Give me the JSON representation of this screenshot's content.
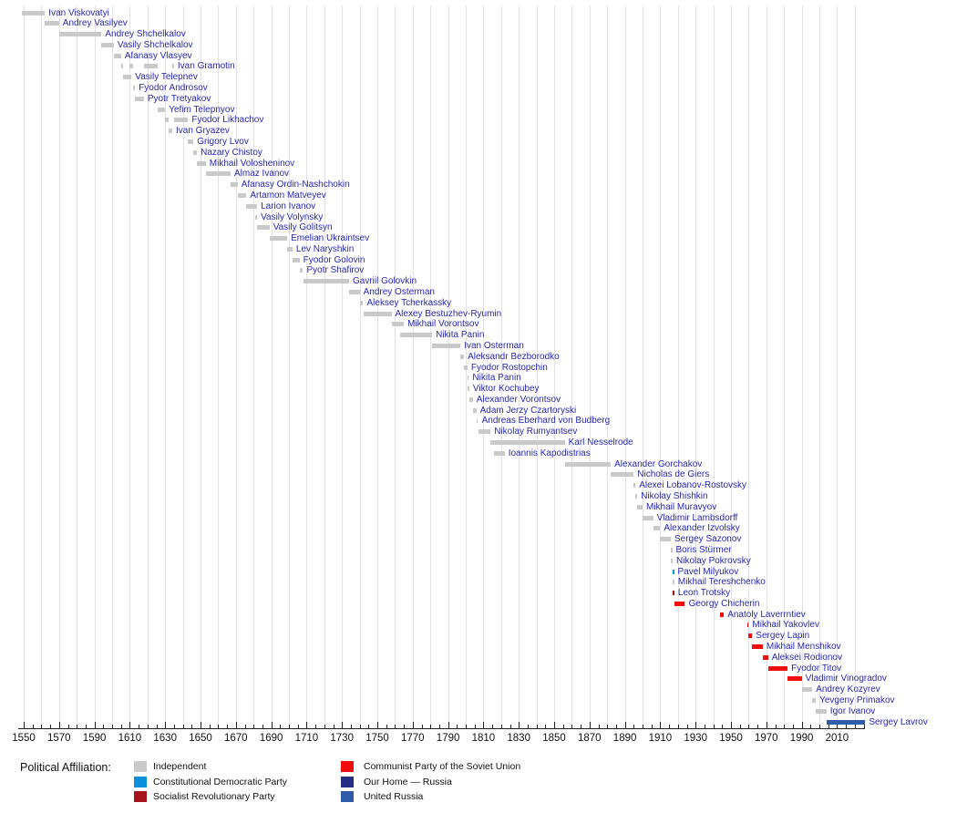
{
  "chart_data": {
    "type": "timeline-gantt",
    "description": "Timeline of Russian foreign ministers / heads of the foreign affairs office, bars show term of office",
    "x_axis": {
      "min_year": 1547,
      "max_year": 2026,
      "tick_label_years": [
        1550,
        1570,
        1590,
        1610,
        1630,
        1650,
        1670,
        1690,
        1710,
        1730,
        1750,
        1770,
        1790,
        1810,
        1830,
        1850,
        1870,
        1890,
        1910,
        1930,
        1950,
        1970,
        1990,
        2010
      ],
      "minor_tick_step": 5,
      "gridline_step": 10
    },
    "affiliation_colors": {
      "independent": "#c9c9c9",
      "kadet": "#0c90dd",
      "sr": "#a8141c",
      "cpsu": "#f20d0d",
      "our_home": "#262d84",
      "united_russia": "#2e5ca9"
    },
    "label_color": "#2727b5",
    "gridline_color": "#e2e2e2",
    "ministers": [
      {
        "name": "Ivan Viskovatyi",
        "affiliation": "independent",
        "terms": [
          [
            1549,
            1562
          ]
        ]
      },
      {
        "name": "Andrey Vasilyev",
        "affiliation": "independent",
        "terms": [
          [
            1562,
            1570
          ]
        ]
      },
      {
        "name": "Andrey Shchelkalov",
        "affiliation": "independent",
        "terms": [
          [
            1570,
            1594
          ]
        ]
      },
      {
        "name": "Vasily Shchelkalov",
        "affiliation": "independent",
        "terms": [
          [
            1594,
            1601
          ]
        ]
      },
      {
        "name": "Afanasy Vlasyev",
        "affiliation": "independent",
        "terms": [
          [
            1601,
            1605
          ]
        ]
      },
      {
        "name": "Ivan Gramotin",
        "affiliation": "independent",
        "terms": [
          [
            1605,
            1606
          ],
          [
            1610,
            1612
          ],
          [
            1618,
            1626
          ],
          [
            1634,
            1635
          ]
        ]
      },
      {
        "name": "Vasily Telepnev",
        "affiliation": "independent",
        "terms": [
          [
            1606,
            1611
          ]
        ]
      },
      {
        "name": "Fyodor Androsov",
        "affiliation": "independent",
        "terms": [
          [
            1612,
            1613
          ]
        ]
      },
      {
        "name": "Pyotr Tretyakov",
        "affiliation": "independent",
        "terms": [
          [
            1613,
            1618
          ]
        ]
      },
      {
        "name": "Yefim Telepnyov",
        "affiliation": "independent",
        "terms": [
          [
            1626,
            1630
          ]
        ]
      },
      {
        "name": "Fyodor Likhachov",
        "affiliation": "independent",
        "terms": [
          [
            1630,
            1632
          ],
          [
            1635,
            1643
          ]
        ]
      },
      {
        "name": "Ivan Gryazev",
        "affiliation": "independent",
        "terms": [
          [
            1632,
            1634
          ]
        ]
      },
      {
        "name": "Grigory Lvov",
        "affiliation": "independent",
        "terms": [
          [
            1643,
            1646
          ]
        ]
      },
      {
        "name": "Nazary Chistoy",
        "affiliation": "independent",
        "terms": [
          [
            1646,
            1648
          ]
        ]
      },
      {
        "name": "Mikhail Volosheninov",
        "affiliation": "independent",
        "terms": [
          [
            1648,
            1653
          ]
        ]
      },
      {
        "name": "Almaz Ivanov",
        "affiliation": "independent",
        "terms": [
          [
            1653,
            1667
          ]
        ]
      },
      {
        "name": "Afanasy Ordin-Nashchokin",
        "affiliation": "independent",
        "terms": [
          [
            1667,
            1671
          ]
        ]
      },
      {
        "name": "Artamon Matveyev",
        "affiliation": "independent",
        "terms": [
          [
            1671,
            1676
          ]
        ]
      },
      {
        "name": "Larion Ivanov",
        "affiliation": "independent",
        "terms": [
          [
            1676,
            1682
          ]
        ]
      },
      {
        "name": "Vasily Volynsky",
        "affiliation": "independent",
        "terms": [
          [
            1681,
            1682
          ]
        ]
      },
      {
        "name": "Vasily Golitsyn",
        "affiliation": "independent",
        "terms": [
          [
            1682,
            1689
          ]
        ]
      },
      {
        "name": "Emelian Ukraintsev",
        "affiliation": "independent",
        "terms": [
          [
            1689,
            1699
          ]
        ]
      },
      {
        "name": "Lev Naryshkin",
        "affiliation": "independent",
        "terms": [
          [
            1699,
            1702
          ]
        ]
      },
      {
        "name": "Fyodor Golovin",
        "affiliation": "independent",
        "terms": [
          [
            1702,
            1706
          ]
        ]
      },
      {
        "name": "Pyotr Shafirov",
        "affiliation": "independent",
        "terms": [
          [
            1706,
            1708
          ]
        ]
      },
      {
        "name": "Gavriil Golovkin",
        "affiliation": "independent",
        "terms": [
          [
            1708,
            1734
          ]
        ]
      },
      {
        "name": "Andrey Osterman",
        "affiliation": "independent",
        "terms": [
          [
            1734,
            1740
          ]
        ]
      },
      {
        "name": "Aleksey Tcherkassky",
        "affiliation": "independent",
        "terms": [
          [
            1740,
            1742
          ]
        ]
      },
      {
        "name": "Alexey Bestuzhev-Ryumin",
        "affiliation": "independent",
        "terms": [
          [
            1742,
            1758
          ]
        ]
      },
      {
        "name": "Mikhail Vorontsov",
        "affiliation": "independent",
        "terms": [
          [
            1758,
            1765
          ]
        ]
      },
      {
        "name": "Nikita Panin",
        "affiliation": "independent",
        "terms": [
          [
            1763,
            1781
          ]
        ]
      },
      {
        "name": "Ivan Osterman",
        "affiliation": "independent",
        "terms": [
          [
            1781,
            1797
          ]
        ]
      },
      {
        "name": "Aleksandr Bezborodko",
        "affiliation": "independent",
        "terms": [
          [
            1797,
            1799
          ]
        ]
      },
      {
        "name": "Fyodor Rostopchin",
        "affiliation": "independent",
        "terms": [
          [
            1799,
            1801
          ]
        ]
      },
      {
        "name": "Nikita Panin",
        "affiliation": "independent",
        "terms": [
          [
            1801,
            1801
          ]
        ]
      },
      {
        "name": "Viktor Kochubey",
        "affiliation": "independent",
        "terms": [
          [
            1801,
            1802
          ]
        ]
      },
      {
        "name": "Alexander Vorontsov",
        "affiliation": "independent",
        "terms": [
          [
            1802,
            1804
          ]
        ]
      },
      {
        "name": "Adam Jerzy Czartoryski",
        "affiliation": "independent",
        "terms": [
          [
            1804,
            1806
          ]
        ]
      },
      {
        "name": "Andreas Eberhard von Budberg",
        "affiliation": "independent",
        "terms": [
          [
            1806,
            1807
          ]
        ]
      },
      {
        "name": "Nikolay Rumyantsev",
        "affiliation": "independent",
        "terms": [
          [
            1807,
            1814
          ]
        ]
      },
      {
        "name": "Karl Nesselrode",
        "affiliation": "independent",
        "terms": [
          [
            1814,
            1856
          ]
        ]
      },
      {
        "name": "Ioannis Kapodistrias",
        "affiliation": "independent",
        "terms": [
          [
            1816,
            1822
          ]
        ]
      },
      {
        "name": "Alexander Gorchakov",
        "affiliation": "independent",
        "terms": [
          [
            1856,
            1882
          ]
        ]
      },
      {
        "name": "Nicholas de Giers",
        "affiliation": "independent",
        "terms": [
          [
            1882,
            1895
          ]
        ]
      },
      {
        "name": "Alexei Lobanov-Rostovsky",
        "affiliation": "independent",
        "terms": [
          [
            1895,
            1896
          ]
        ]
      },
      {
        "name": "Nikolay Shishkin",
        "affiliation": "independent",
        "terms": [
          [
            1896,
            1897
          ]
        ]
      },
      {
        "name": "Mikhail Muravyov",
        "affiliation": "independent",
        "terms": [
          [
            1897,
            1900
          ]
        ]
      },
      {
        "name": "Vladimir Lambsdorff",
        "affiliation": "independent",
        "terms": [
          [
            1900,
            1906
          ]
        ]
      },
      {
        "name": "Alexander Izvolsky",
        "affiliation": "independent",
        "terms": [
          [
            1906,
            1910
          ]
        ]
      },
      {
        "name": "Sergey Sazonov",
        "affiliation": "independent",
        "terms": [
          [
            1910,
            1916
          ]
        ]
      },
      {
        "name": "Boris Stürmer",
        "affiliation": "independent",
        "terms": [
          [
            1916,
            1916
          ]
        ]
      },
      {
        "name": "Nikolay Pokrovsky",
        "affiliation": "independent",
        "terms": [
          [
            1916,
            1917
          ]
        ]
      },
      {
        "name": "Pavel Milyukov",
        "affiliation": "kadet",
        "terms": [
          [
            1917,
            1917
          ]
        ]
      },
      {
        "name": "Mikhail Tereshchenko",
        "affiliation": "independent",
        "terms": [
          [
            1917,
            1918
          ]
        ]
      },
      {
        "name": "Leon Trotsky",
        "affiliation": "sr",
        "terms": [
          [
            1917,
            1918
          ]
        ]
      },
      {
        "name": "Georgy Chicherin",
        "affiliation": "cpsu",
        "terms": [
          [
            1918,
            1924
          ]
        ]
      },
      {
        "name": "Anatoly Laverrntiev",
        "affiliation": "cpsu",
        "terms": [
          [
            1944,
            1946
          ]
        ]
      },
      {
        "name": "Mikhail Yakovlev",
        "affiliation": "cpsu",
        "terms": [
          [
            1959,
            1960
          ]
        ]
      },
      {
        "name": "Sergey Lapin",
        "affiliation": "cpsu",
        "terms": [
          [
            1960,
            1962
          ]
        ]
      },
      {
        "name": "Mikhail Menshikov",
        "affiliation": "cpsu",
        "terms": [
          [
            1962,
            1968
          ]
        ]
      },
      {
        "name": "Aleksei Rodionov",
        "affiliation": "cpsu",
        "terms": [
          [
            1968,
            1971
          ]
        ]
      },
      {
        "name": "Fyodor Titov",
        "affiliation": "cpsu",
        "terms": [
          [
            1971,
            1982
          ]
        ]
      },
      {
        "name": "Vladimir Vinogradov",
        "affiliation": "cpsu",
        "terms": [
          [
            1982,
            1990
          ]
        ]
      },
      {
        "name": "Andrey Kozyrev",
        "affiliation": "independent",
        "terms": [
          [
            1990,
            1996
          ]
        ]
      },
      {
        "name": "Yevgeny Primakov",
        "affiliation": "independent",
        "terms": [
          [
            1996,
            1998
          ]
        ]
      },
      {
        "name": "Igor Ivanov",
        "affiliation": "independent",
        "terms": [
          [
            1998,
            2004
          ]
        ]
      },
      {
        "name": "Sergey Lavrov",
        "affiliation": "united_russia",
        "terms": [
          [
            2004,
            2026
          ]
        ]
      }
    ]
  },
  "legend": {
    "title": "Political Affiliation:",
    "columns": [
      [
        {
          "label": "Independent",
          "affiliation": "independent"
        },
        {
          "label": "Constitutional Democratic Party",
          "affiliation": "kadet"
        },
        {
          "label": "Socialist Revolutionary Party",
          "affiliation": "sr"
        }
      ],
      [
        {
          "label": "Communist Party of the Soviet Union",
          "affiliation": "cpsu"
        },
        {
          "label": "Our Home — Russia",
          "affiliation": "our_home"
        },
        {
          "label": "United Russia",
          "affiliation": "united_russia"
        }
      ]
    ]
  }
}
